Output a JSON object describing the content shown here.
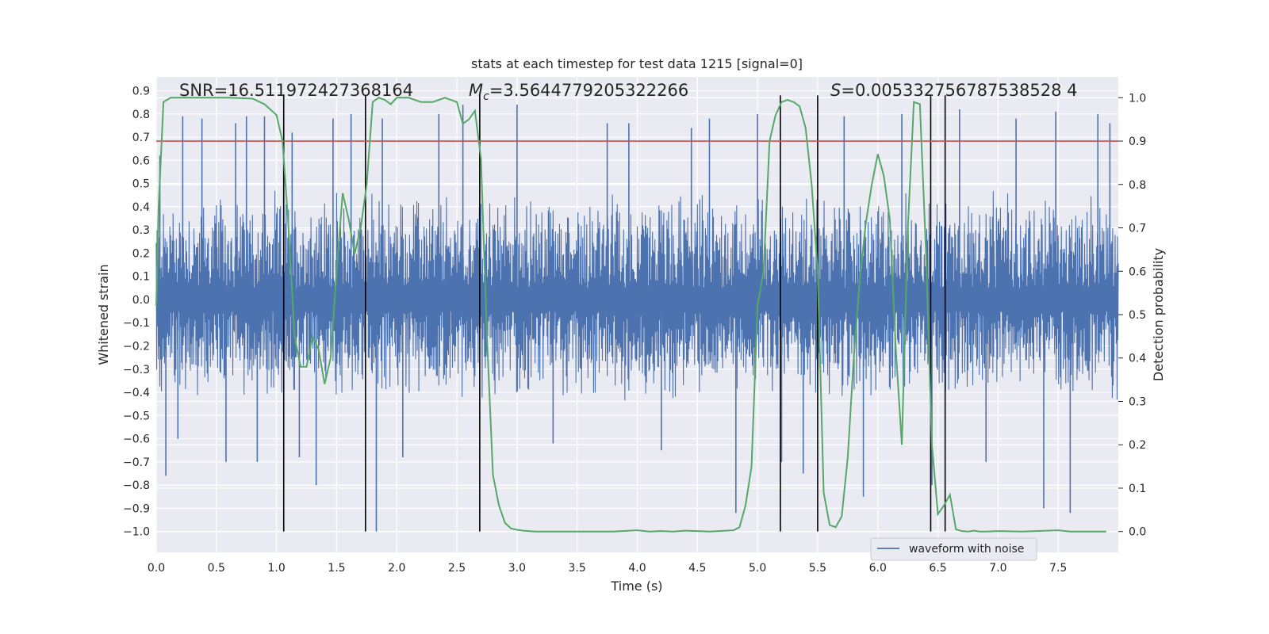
{
  "chart_data": {
    "type": "line",
    "title": "stats at each timestep for test data 1215 [signal=0]",
    "xlabel": "Time (s)",
    "ylabel_left": "Whitened strain",
    "ylabel_right": "Detection probability",
    "xlim": [
      0.0,
      8.0
    ],
    "ylim_left": [
      -1.09,
      0.96
    ],
    "ylim_right": [
      -0.048,
      1.048
    ],
    "x_ticks": [
      "0.0",
      "0.5",
      "1.0",
      "1.5",
      "2.0",
      "2.5",
      "3.0",
      "3.5",
      "4.0",
      "4.5",
      "5.0",
      "5.5",
      "6.0",
      "6.5",
      "7.0",
      "7.5"
    ],
    "y_left_ticks": [
      "0.9",
      "0.8",
      "0.7",
      "0.6",
      "0.5",
      "0.4",
      "0.3",
      "0.2",
      "0.1",
      "0.0",
      "-0.1",
      "-0.2",
      "-0.3",
      "-0.4",
      "-0.5",
      "-0.6",
      "-0.7",
      "-0.8",
      "-0.9",
      "-1.0"
    ],
    "y_right_ticks": [
      "1.0",
      "0.9",
      "0.8",
      "0.7",
      "0.6",
      "0.5",
      "0.4",
      "0.3",
      "0.2",
      "0.1",
      "0.0"
    ],
    "grid": true,
    "legend": {
      "entries": [
        "waveform with noise"
      ],
      "placement": "lower-right"
    },
    "annotations": {
      "snr": "SNR=16.511972427368164",
      "mc_symbol": "M",
      "mc_sub": "c",
      "mc_value": "=3.5644779205322266",
      "s_symbol": "S",
      "s_value": "=0.005332756787538528 4"
    },
    "series": [
      {
        "name": "waveform with noise",
        "axis": "left",
        "color": "#4c72b0",
        "typical_range": [
          -0.45,
          0.48
        ],
        "spikes": [
          [
            0.03,
            0.62
          ],
          [
            0.08,
            -0.76
          ],
          [
            0.18,
            -0.6
          ],
          [
            0.22,
            0.79
          ],
          [
            0.38,
            0.78
          ],
          [
            0.58,
            -0.7
          ],
          [
            0.66,
            0.76
          ],
          [
            0.75,
            0.79
          ],
          [
            0.84,
            -0.7
          ],
          [
            0.9,
            0.79
          ],
          [
            1.06,
            0.75
          ],
          [
            1.13,
            0.72
          ],
          [
            1.19,
            -0.68
          ],
          [
            1.33,
            -0.8
          ],
          [
            1.47,
            0.78
          ],
          [
            1.62,
            0.8
          ],
          [
            1.83,
            -1.0
          ],
          [
            1.88,
            0.78
          ],
          [
            2.05,
            -0.68
          ],
          [
            2.35,
            0.8
          ],
          [
            2.55,
            0.84
          ],
          [
            3.0,
            0.84
          ],
          [
            3.3,
            -0.62
          ],
          [
            3.75,
            0.76
          ],
          [
            3.93,
            0.76
          ],
          [
            4.2,
            -0.65
          ],
          [
            4.45,
            0.74
          ],
          [
            4.6,
            0.78
          ],
          [
            4.82,
            -0.92
          ],
          [
            5.0,
            0.8
          ],
          [
            5.2,
            -0.7
          ],
          [
            5.38,
            -0.75
          ],
          [
            5.72,
            0.79
          ],
          [
            5.88,
            -0.85
          ],
          [
            6.2,
            0.8
          ],
          [
            6.45,
            -0.8
          ],
          [
            6.68,
            0.82
          ],
          [
            6.9,
            -0.7
          ],
          [
            7.15,
            0.78
          ],
          [
            7.38,
            -0.9
          ],
          [
            7.48,
            0.81
          ],
          [
            7.6,
            -0.92
          ],
          [
            7.83,
            0.8
          ],
          [
            7.93,
            0.76
          ]
        ]
      },
      {
        "name": "",
        "axis": "right",
        "color": "#55a868",
        "x": [
          0.0,
          0.02,
          0.06,
          0.12,
          0.2,
          0.4,
          0.6,
          0.8,
          0.9,
          1.0,
          1.05,
          1.1,
          1.15,
          1.2,
          1.25,
          1.3,
          1.35,
          1.4,
          1.45,
          1.5,
          1.55,
          1.6,
          1.65,
          1.7,
          1.75,
          1.8,
          1.85,
          1.9,
          1.95,
          2.0,
          2.1,
          2.2,
          2.3,
          2.4,
          2.5,
          2.55,
          2.6,
          2.65,
          2.7,
          2.75,
          2.8,
          2.85,
          2.9,
          2.95,
          3.0,
          3.05,
          3.15,
          3.3,
          3.5,
          3.8,
          4.0,
          4.1,
          4.2,
          4.3,
          4.4,
          4.6,
          4.8,
          4.85,
          4.9,
          4.95,
          5.0,
          5.05,
          5.1,
          5.15,
          5.2,
          5.25,
          5.3,
          5.35,
          5.4,
          5.45,
          5.5,
          5.55,
          5.6,
          5.65,
          5.7,
          5.75,
          5.8,
          5.85,
          5.9,
          5.95,
          6.0,
          6.05,
          6.1,
          6.15,
          6.2,
          6.25,
          6.3,
          6.35,
          6.4,
          6.45,
          6.5,
          6.55,
          6.6,
          6.65,
          6.7,
          6.75,
          6.8,
          6.85,
          6.9,
          7.0,
          7.2,
          7.5,
          7.6,
          7.7,
          7.9
        ],
        "values": [
          0.52,
          0.75,
          0.99,
          1.0,
          1.0,
          1.0,
          1.0,
          0.998,
          0.985,
          0.96,
          0.9,
          0.7,
          0.45,
          0.38,
          0.38,
          0.45,
          0.42,
          0.34,
          0.4,
          0.6,
          0.78,
          0.72,
          0.64,
          0.7,
          0.8,
          0.99,
          1.0,
          0.995,
          0.985,
          1.0,
          1.0,
          0.99,
          0.99,
          1.0,
          0.99,
          0.94,
          0.95,
          0.97,
          0.86,
          0.45,
          0.13,
          0.06,
          0.02,
          0.007,
          0.004,
          0.002,
          0.0,
          0.0,
          0.0,
          0.0,
          0.003,
          0.0,
          0.001,
          0.0,
          0.002,
          0.0,
          0.003,
          0.01,
          0.06,
          0.15,
          0.52,
          0.6,
          0.9,
          0.96,
          0.99,
          0.995,
          0.99,
          0.98,
          0.93,
          0.8,
          0.6,
          0.09,
          0.015,
          0.01,
          0.035,
          0.17,
          0.4,
          0.58,
          0.71,
          0.8,
          0.87,
          0.82,
          0.72,
          0.42,
          0.2,
          0.7,
          0.99,
          0.985,
          0.65,
          0.2,
          0.04,
          0.06,
          0.085,
          0.005,
          0.001,
          0.0,
          0.002,
          0.0,
          0.0,
          0.001,
          0.0,
          0.003,
          0.0,
          0.0,
          0.0
        ]
      }
    ],
    "threshold": {
      "axis": "right",
      "value": 0.9,
      "color": "#c44e52"
    },
    "vertical_lines_x": [
      1.06,
      1.74,
      2.69,
      5.19,
      5.5,
      6.44,
      6.56
    ],
    "vertical_lines_range": [
      -1.0,
      0.88
    ]
  }
}
